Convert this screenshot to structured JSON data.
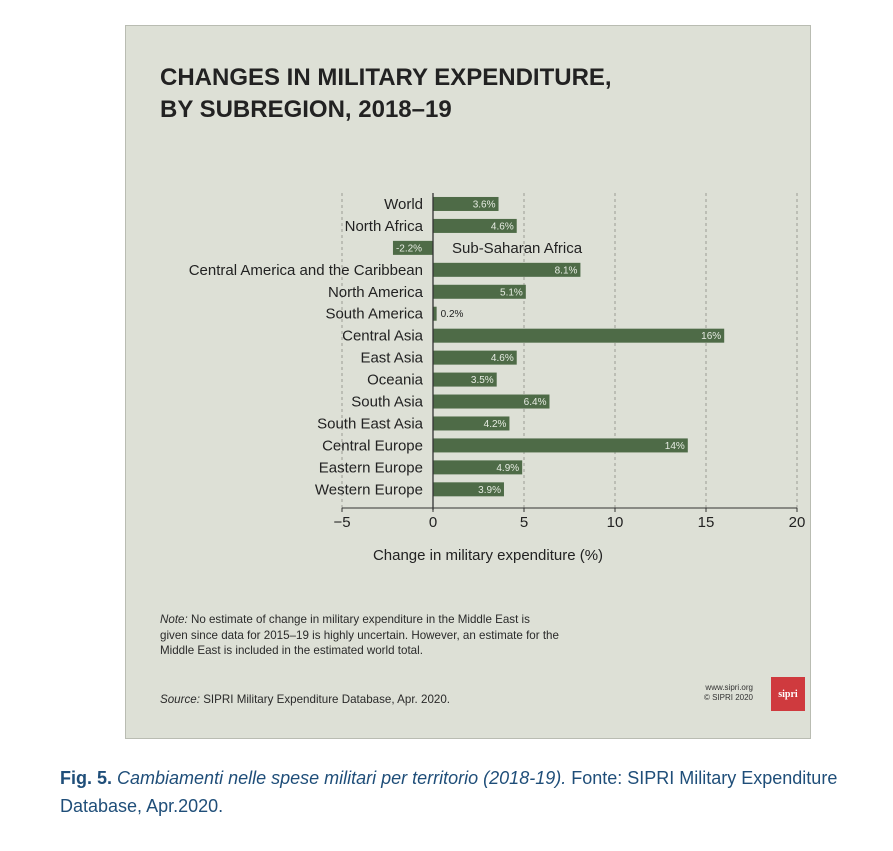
{
  "chart_data": {
    "type": "bar",
    "orientation": "horizontal",
    "title": "CHANGES IN MILITARY EXPENDITURE,\nBY SUBREGION, 2018–19",
    "xlabel": "Change in military expenditure (%)",
    "xlim": [
      -5,
      20
    ],
    "xticks": [
      "−5",
      "0",
      "5",
      "10",
      "15",
      "20"
    ],
    "xtick_values": [
      -5,
      0,
      5,
      10,
      15,
      20
    ],
    "grid": "vertical dashed",
    "bar_color": "#4e6b47",
    "categories": [
      "World",
      "North Africa",
      "Sub-Saharan Africa",
      "Central America and the Caribbean",
      "North America",
      "South America",
      "Central Asia",
      "East Asia",
      "Oceania",
      "South Asia",
      "South East Asia",
      "Central Europe",
      "Eastern Europe",
      "Western Europe"
    ],
    "values": [
      3.6,
      4.6,
      -2.2,
      8.1,
      5.1,
      0.2,
      16,
      4.6,
      3.5,
      6.4,
      4.2,
      14,
      4.9,
      3.9
    ],
    "data_labels": [
      "3.6%",
      "4.6%",
      "-2.2%",
      "8.1%",
      "5.1%",
      "0.2%",
      "16%",
      "4.6%",
      "3.5%",
      "6.4%",
      "4.2%",
      "14%",
      "4.9%",
      "3.9%"
    ]
  },
  "note": {
    "label": "Note:",
    "text": " No estimate of change in military expenditure in the Middle East is given since data for 2015–19 is highly uncertain. However, an estimate for the Middle East is included in the estimated world total."
  },
  "source": {
    "label": "Source:",
    "text": " SIPRI Military Expenditure Database, Apr. 2020."
  },
  "branding": {
    "url": "www.sipri.org",
    "copyright": "© SIPRI 2020",
    "logo_text": "sipri"
  },
  "caption": {
    "fig": "Fig. 5.",
    "title": "Cambiamenti nelle spese militari per territorio (2018-19).",
    "rest": " Fonte: SIPRI Military Expenditure Database, Apr.2020."
  }
}
